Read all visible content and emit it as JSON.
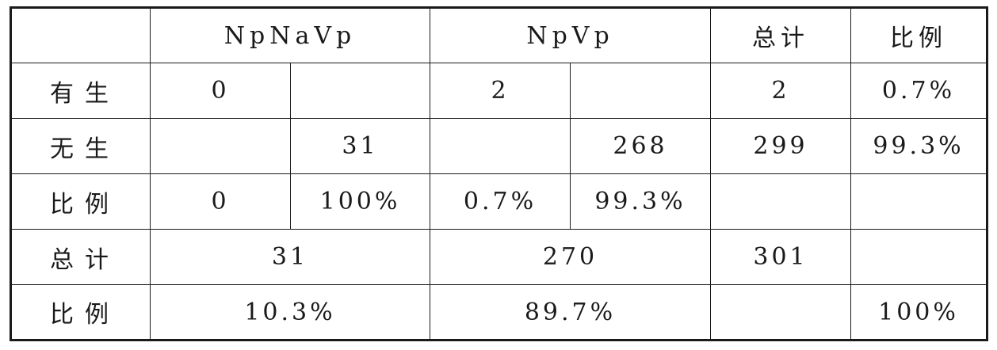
{
  "header": {
    "corner": "",
    "group1": "NpNaVp",
    "group2": "NpVp",
    "total": "总计",
    "ratio": "比例"
  },
  "rows": [
    {
      "label": "有生",
      "cells": [
        "0",
        "",
        "2",
        "",
        "2",
        "0.7%"
      ]
    },
    {
      "label": "无生",
      "cells": [
        "",
        "31",
        "",
        "268",
        "299",
        "99.3%"
      ]
    },
    {
      "label": "比例",
      "cells": [
        "0",
        "100%",
        "0.7%",
        "99.3%",
        "",
        ""
      ]
    }
  ],
  "total_row": {
    "label": "总计",
    "group1": "31",
    "group2": "270",
    "total": "301",
    "ratio": ""
  },
  "ratio_row": {
    "label": "比例",
    "group1": "10.3%",
    "group2": "89.7%",
    "total": "",
    "ratio": "100%"
  }
}
